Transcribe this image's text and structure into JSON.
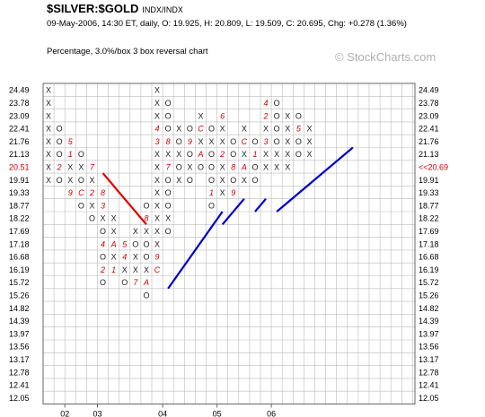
{
  "header": {
    "symbol": "$SILVER:$GOLD",
    "exchange": "INDX/INDX",
    "info": "09-May-2006, 14:30 ET, daily, O: 19.925, H: 20.809, L: 19.509, C: 20.695, Chg: +0.278 (1.36%)",
    "subtitle": "Percentage, 3.0%/box 3 box reversal chart",
    "watermark": "© StockCharts.com"
  },
  "chart_data": {
    "type": "point-and-figure",
    "price_levels": [
      "24.49",
      "23.78",
      "23.09",
      "22.41",
      "21.76",
      "21.13",
      "20.51",
      "19.91",
      "19.33",
      "18.77",
      "18.22",
      "17.69",
      "17.18",
      "16.68",
      "16.19",
      "15.72",
      "15.26",
      "14.82",
      "14.39",
      "13.97",
      "13.56",
      "13.17",
      "12.78",
      "12.41",
      "12.05"
    ],
    "left_highlight_label": "20.51",
    "current_price_label": "<<20.69",
    "current_price_row": 6,
    "x_labels": [
      {
        "col": 2,
        "label": "02"
      },
      {
        "col": 5,
        "label": "03"
      },
      {
        "col": 11,
        "label": "04"
      },
      {
        "col": 16,
        "label": "05"
      },
      {
        "col": 21,
        "label": "06"
      }
    ],
    "columns": [
      {
        "type": "X",
        "bottom": 17,
        "top": 24
      },
      {
        "type": "O",
        "bottom": 17,
        "top": 21,
        "marks": {
          "18": "2"
        }
      },
      {
        "type": "X",
        "bottom": 16,
        "top": 20,
        "marks": {
          "16": "9",
          "19": "1",
          "20": "5"
        }
      },
      {
        "type": "O",
        "bottom": 15,
        "top": 19,
        "marks": {
          "16": "C",
          "18": "X"
        }
      },
      {
        "type": "X",
        "bottom": 14,
        "top": 18,
        "marks": {
          "14": "O",
          "16": "2",
          "17": "X",
          "18": "7"
        }
      },
      {
        "type": "O",
        "bottom": 9,
        "top": 16,
        "marks": {
          "10": "2",
          "16": "8",
          "15": "3",
          "14": "X",
          "12": "4"
        }
      },
      {
        "type": "X",
        "bottom": 10,
        "top": 14,
        "marks": {
          "10": "1",
          "12": "A",
          "14": "X"
        }
      },
      {
        "type": "O",
        "bottom": 9,
        "top": 12,
        "marks": {
          "9": "O",
          "11": "4",
          "12": "5",
          "10": "X"
        }
      },
      {
        "type": "X",
        "bottom": 9,
        "top": 13,
        "marks": {
          "9": "7",
          "11": "X",
          "12": "O"
        }
      },
      {
        "type": "O",
        "bottom": 8,
        "top": 15,
        "marks": {
          "14": "8",
          "13": "X",
          "10": "X",
          "9": "A"
        }
      },
      {
        "type": "X",
        "bottom": 10,
        "top": 24,
        "marks": {
          "10": "C",
          "11": "9",
          "20": "3",
          "21": "4"
        }
      },
      {
        "type": "O",
        "bottom": 13,
        "top": 23,
        "marks": {
          "13": "O",
          "14": "X",
          "20": "8",
          "19": "X",
          "18": "7"
        }
      },
      {
        "type": "X",
        "bottom": 17,
        "top": 21,
        "marks": {
          "18": "O",
          "19": "X",
          "20": "O"
        }
      },
      {
        "type": "O",
        "bottom": 17,
        "top": 21,
        "marks": {
          "20": "9",
          "18": "X"
        }
      },
      {
        "type": "X",
        "bottom": 18,
        "top": 22,
        "marks": {
          "18": "O",
          "19": "A",
          "21": "C"
        }
      },
      {
        "type": "O",
        "bottom": 15,
        "top": 21,
        "marks": {
          "20": "X",
          "19": "O",
          "16": "1"
        }
      },
      {
        "type": "X",
        "bottom": 16,
        "top": 22,
        "marks": {
          "19": "2",
          "21": "X",
          "22": "6"
        }
      },
      {
        "type": "O",
        "bottom": 16,
        "top": 20,
        "marks": {
          "18": "8",
          "16": "9"
        }
      },
      {
        "type": "X",
        "bottom": 17,
        "top": 21,
        "marks": {
          "18": "A",
          "20": "C"
        }
      },
      {
        "type": "O",
        "bottom": 17,
        "top": 20,
        "marks": {
          "19": "1",
          "17": "O"
        }
      },
      {
        "type": "X",
        "bottom": 18,
        "top": 23,
        "marks": {
          "20": "3",
          "22": "2",
          "23": "4"
        }
      },
      {
        "type": "O",
        "bottom": 18,
        "top": 23,
        "marks": {
          "19": "X",
          "18": "X",
          "20": "O"
        }
      },
      {
        "type": "X",
        "bottom": 18,
        "top": 22
      },
      {
        "type": "O",
        "bottom": 19,
        "top": 22,
        "marks": {
          "21": "5"
        }
      },
      {
        "type": "X",
        "bottom": 19,
        "top": 21
      }
    ],
    "trendlines": [
      {
        "color": "red",
        "from": [
          5,
          18
        ],
        "to": [
          9,
          14
        ]
      },
      {
        "color": "blue",
        "from": [
          11,
          9
        ],
        "to": [
          16,
          15
        ]
      },
      {
        "color": "blue",
        "from": [
          16,
          14
        ],
        "to": [
          18,
          16
        ]
      },
      {
        "color": "blue",
        "from": [
          19,
          15
        ],
        "to": [
          20,
          16
        ]
      },
      {
        "color": "blue",
        "from": [
          21,
          15
        ],
        "to": [
          28,
          20
        ]
      }
    ]
  },
  "colors": {
    "grid": "#bbbbbb",
    "axis": "#666666",
    "mark": "#222222",
    "month_mark": "#cc0000",
    "highlight": "#cc0000",
    "red_line": "#dd0000",
    "blue_line": "#0000cc"
  }
}
